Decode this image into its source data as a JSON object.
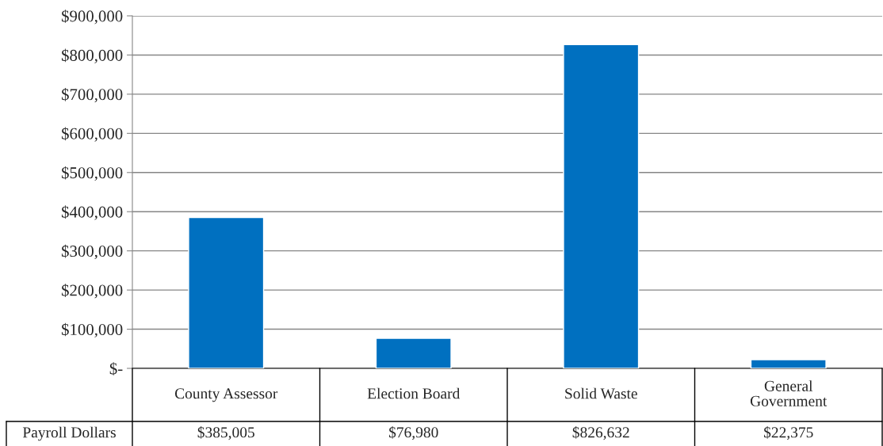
{
  "chart_data": {
    "type": "bar",
    "categories": [
      "County Assessor",
      "Election Board",
      "Solid Waste",
      "General\nGovernment"
    ],
    "series": [
      {
        "name": "Payroll Dollars",
        "color": "#0070c0",
        "values": [
          385005,
          76980,
          826632,
          22375
        ],
        "value_labels": [
          "$385,005",
          "$76,980",
          "$826,632",
          "$22,375"
        ]
      }
    ],
    "ylim": [
      0,
      900000
    ],
    "yticks": [
      {
        "value": 0,
        "label": "$-"
      },
      {
        "value": 100000,
        "label": "$100,000"
      },
      {
        "value": 200000,
        "label": "$200,000"
      },
      {
        "value": 300000,
        "label": "$300,000"
      },
      {
        "value": 400000,
        "label": "$400,000"
      },
      {
        "value": 500000,
        "label": "$500,000"
      },
      {
        "value": 600000,
        "label": "$600,000"
      },
      {
        "value": 700000,
        "label": "$700,000"
      },
      {
        "value": 800000,
        "label": "$800,000"
      },
      {
        "value": 900000,
        "label": "$900,000"
      }
    ],
    "grid": "y"
  }
}
